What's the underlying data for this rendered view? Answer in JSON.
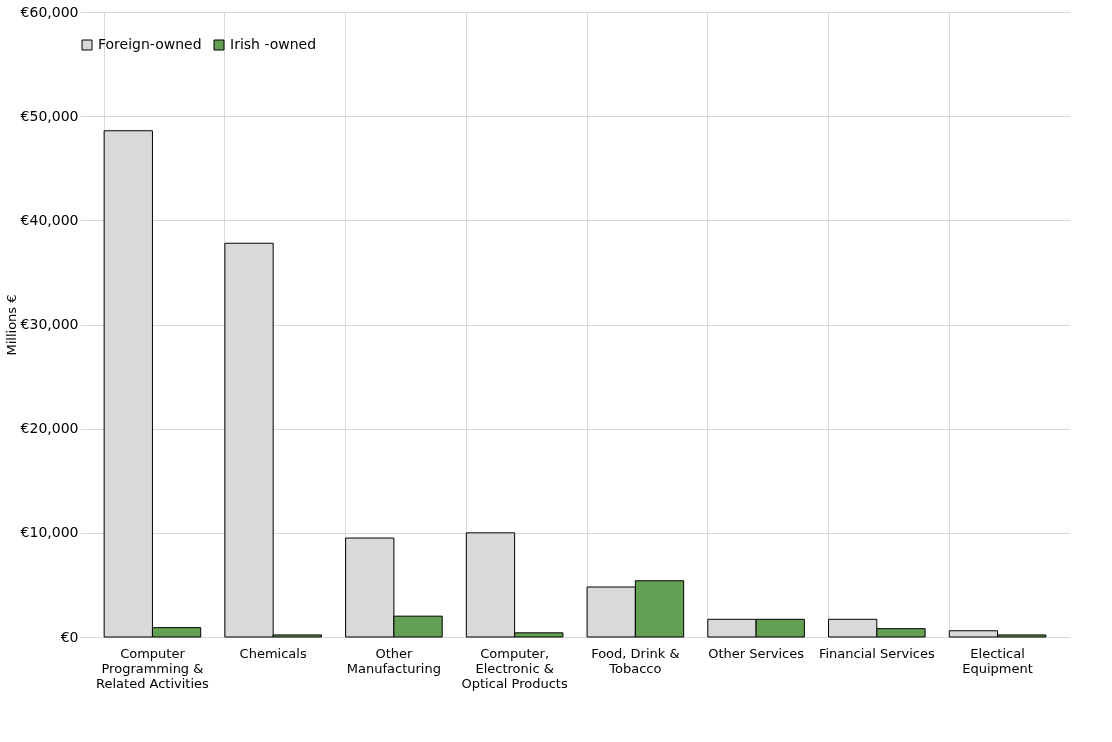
{
  "chart_data": {
    "type": "bar",
    "ylabel": "Millions €",
    "categories": [
      "Computer Programming & Related Activities",
      "Chemicals",
      "Other Manufacturing",
      "Computer, Electronic & Optical Products",
      "Food, Drink & Tobacco",
      "Other Services",
      "Financial Services",
      "Electical Equipment"
    ],
    "series": [
      {
        "name": "Foreign-owned",
        "color": "#d9d9d9",
        "values": [
          48600,
          37800,
          9500,
          10000,
          4800,
          1700,
          1700,
          600
        ]
      },
      {
        "name": "Irish -owned",
        "color": "#63a053",
        "values": [
          900,
          200,
          2000,
          400,
          5400,
          1700,
          800,
          200
        ]
      }
    ],
    "ylim": [
      0,
      60000
    ],
    "yticks": [
      {
        "value": 0,
        "label": "€0"
      },
      {
        "value": 10000,
        "label": "€10,000"
      },
      {
        "value": 20000,
        "label": "€20,000"
      },
      {
        "value": 30000,
        "label": "€30,000"
      },
      {
        "value": 40000,
        "label": "€40,000"
      },
      {
        "value": 50000,
        "label": "€50,000"
      },
      {
        "value": 60000,
        "label": "€60,000"
      }
    ],
    "grid": true,
    "legend": "top"
  }
}
